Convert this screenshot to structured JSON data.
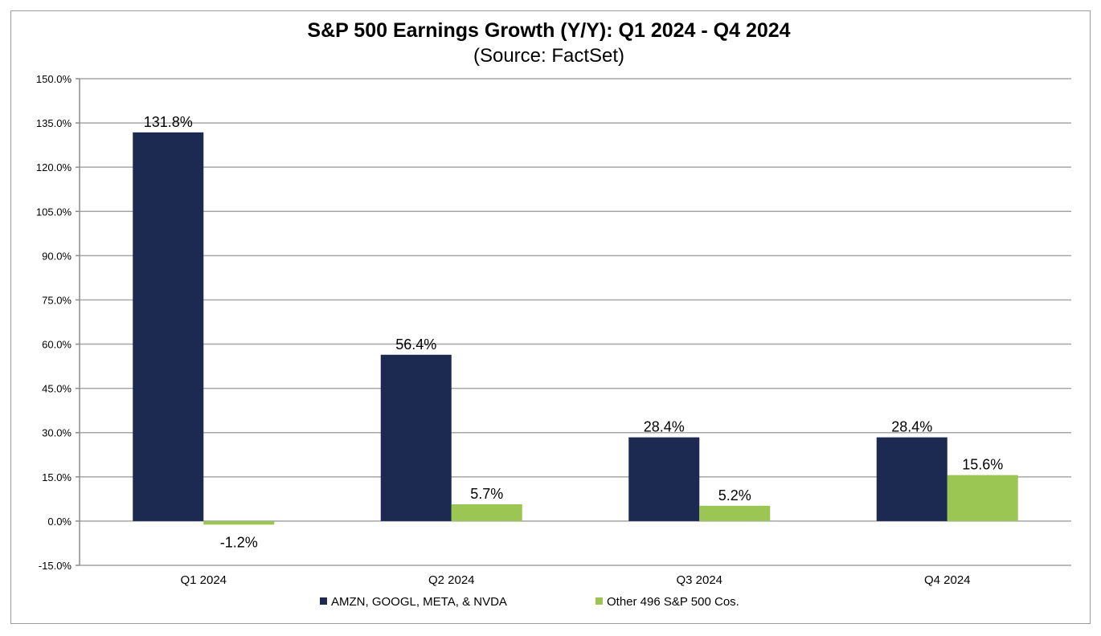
{
  "chart_data": {
    "type": "bar",
    "title": "S&P 500 Earnings Growth (Y/Y): Q1 2024 - Q4 2024",
    "subtitle": "(Source: FactSet)",
    "xlabel": "",
    "ylabel": "",
    "categories": [
      "Q1 2024",
      "Q2 2024",
      "Q3 2024",
      "Q4 2024"
    ],
    "series": [
      {
        "name": "AMZN, GOOGL, META, & NVDA",
        "color": "#1c2951",
        "values": [
          131.8,
          56.4,
          28.4,
          28.4
        ],
        "labels": [
          "131.8%",
          "56.4%",
          "28.4%",
          "28.4%"
        ]
      },
      {
        "name": "Other 496 S&P 500 Cos.",
        "color": "#9bc653",
        "values": [
          -1.2,
          5.7,
          5.2,
          15.6
        ],
        "labels": [
          "-1.2%",
          "5.7%",
          "5.2%",
          "15.6%"
        ]
      }
    ],
    "ylim": [
      -15,
      150
    ],
    "yticks": [
      150,
      135,
      120,
      105,
      90,
      75,
      60,
      45,
      30,
      15,
      0,
      -15
    ],
    "ytick_labels": [
      "150.0%",
      "135.0%",
      "120.0%",
      "105.0%",
      "90.0%",
      "75.0%",
      "60.0%",
      "45.0%",
      "30.0%",
      "15.0%",
      "0.0%",
      "-15.0%"
    ],
    "grid": true,
    "legend_position": "bottom-center"
  }
}
